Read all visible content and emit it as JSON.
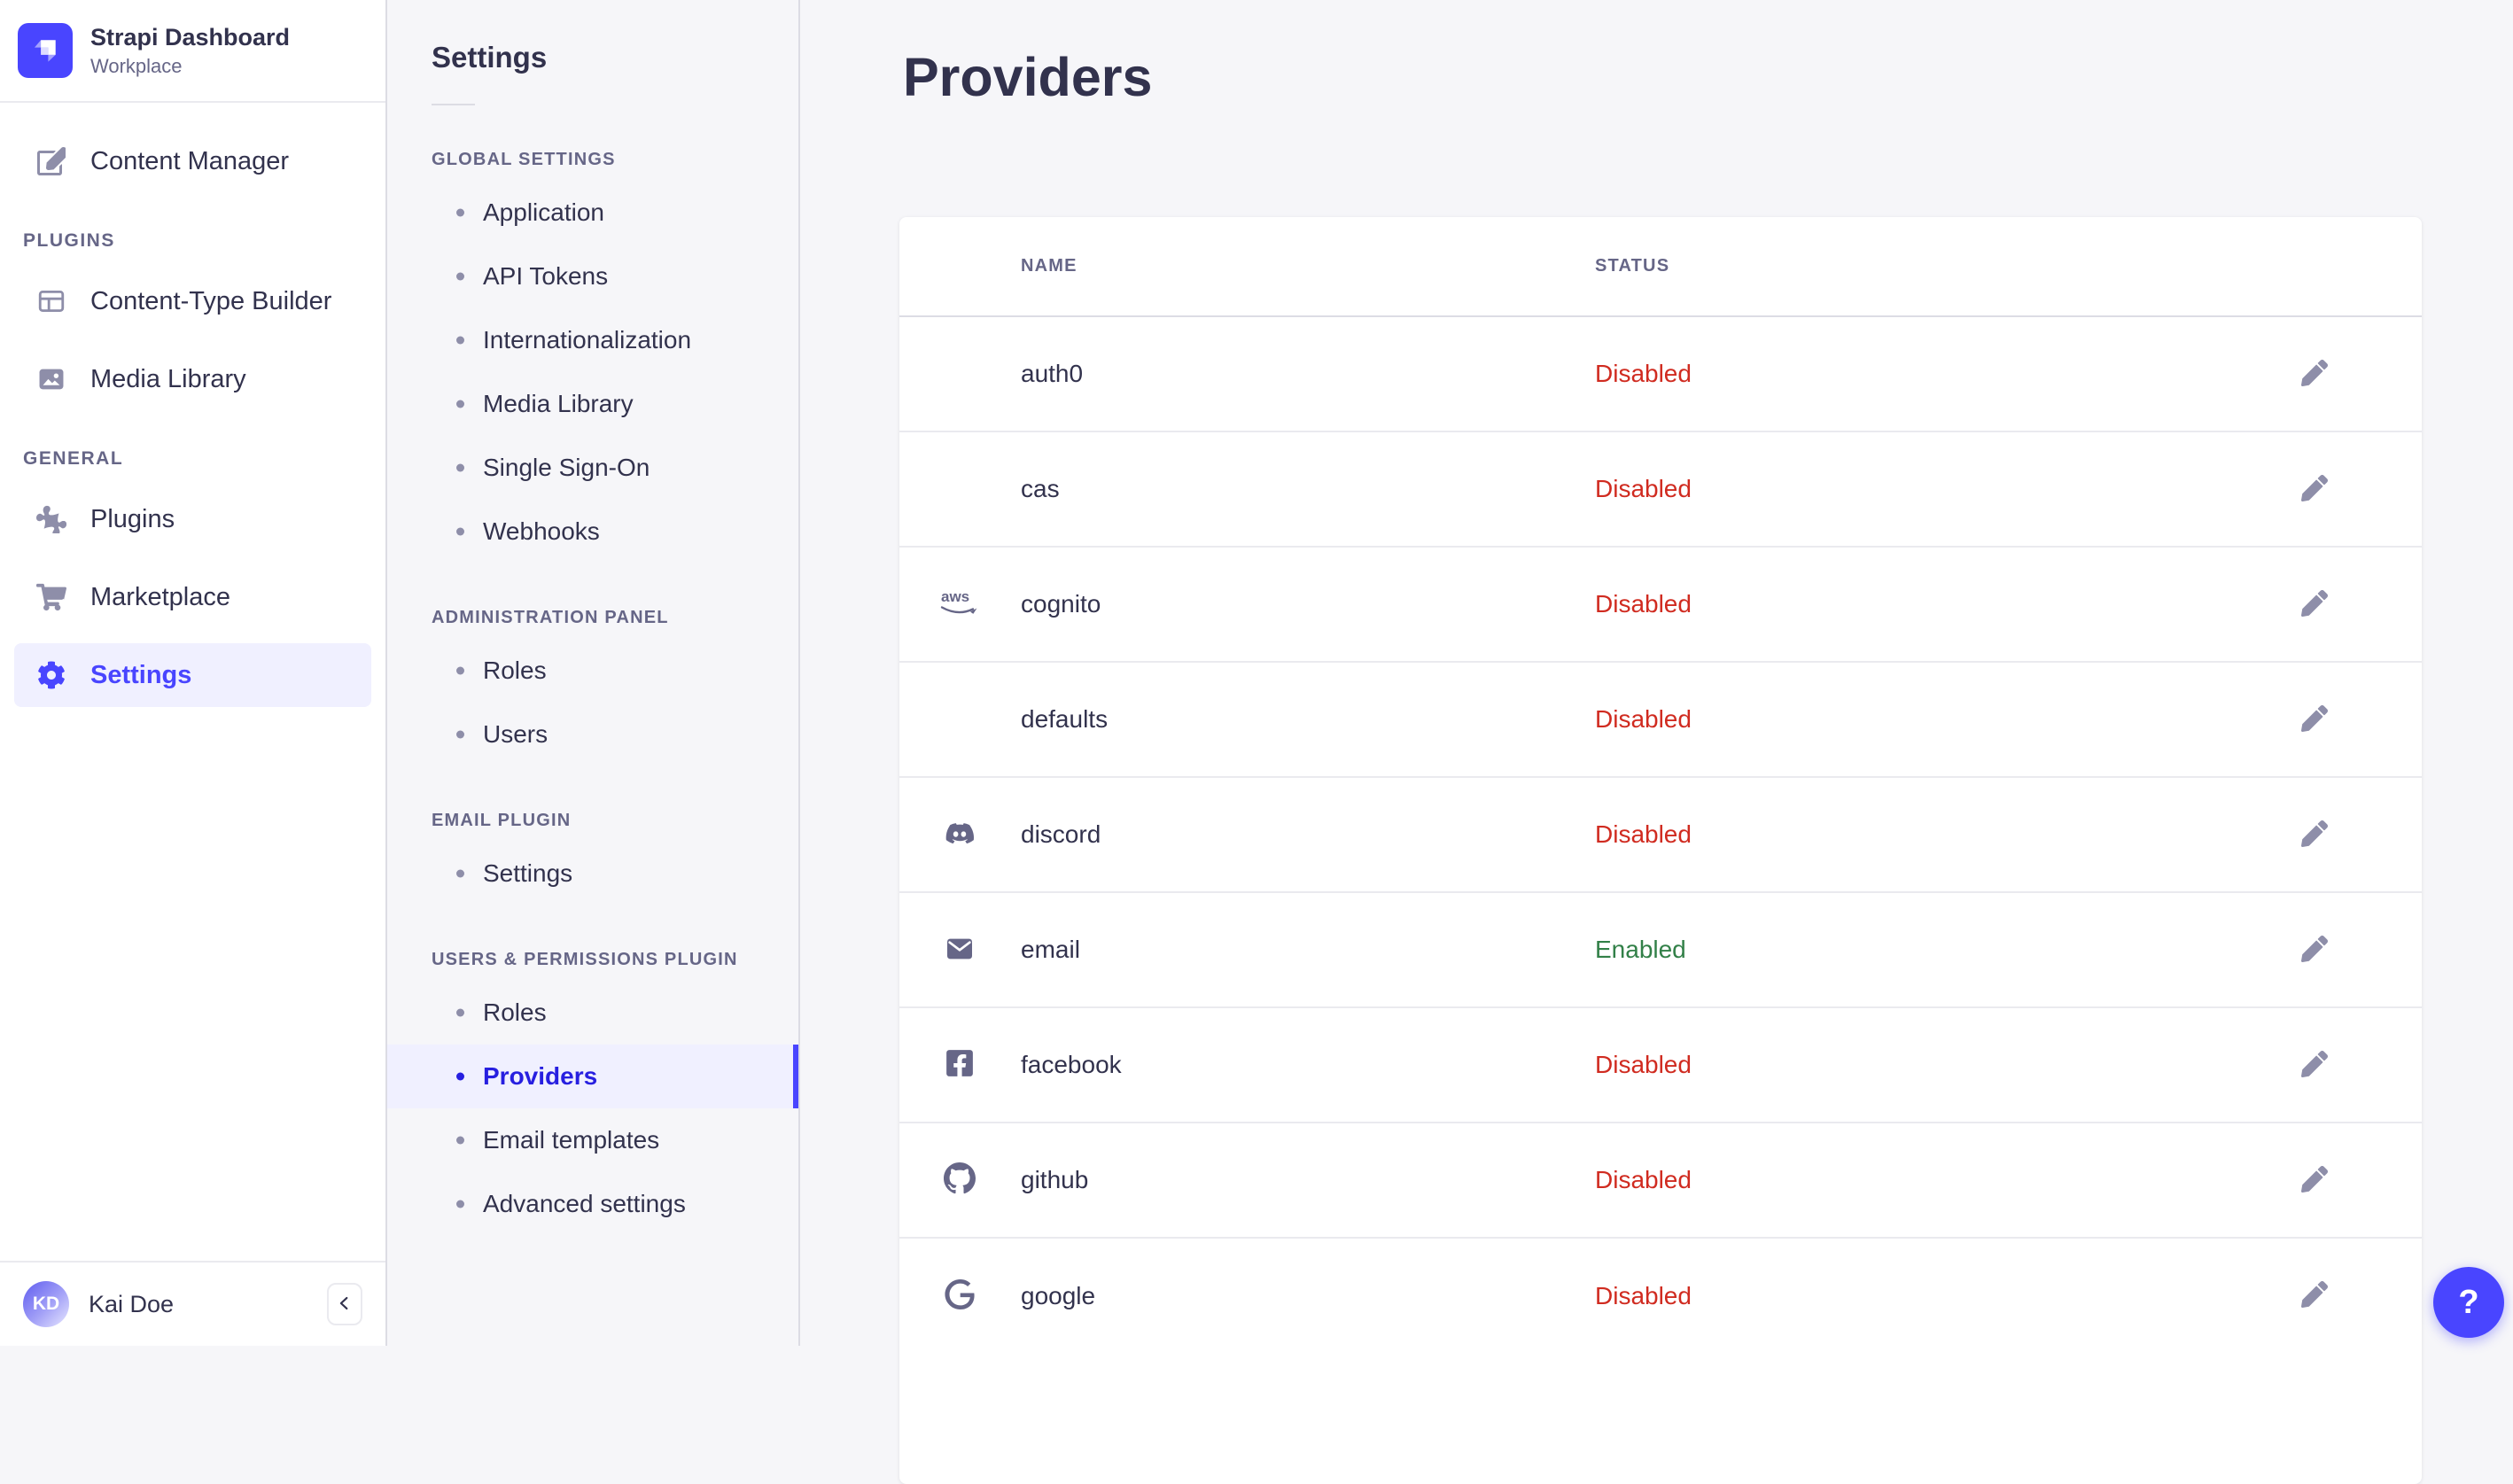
{
  "colors": {
    "primary": "#4945FF",
    "active_subnav_text": "#271FE0",
    "danger": "#D02B20",
    "success": "#328048",
    "text": "#32324D",
    "muted": "#666687",
    "icon_gray": "#8E8EA9",
    "border": "#DCDCE4",
    "row_border": "#EAEAEF",
    "background": "#F6F6F9",
    "highlight": "#F0F0FF"
  },
  "sidebar": {
    "title": "Strapi Dashboard",
    "subtitle": "Workplace",
    "logo_icon": "strapi-logo",
    "sections": [
      {
        "label": "",
        "items": [
          {
            "label": "Content Manager",
            "icon": "content-manager-icon",
            "active": false
          }
        ]
      },
      {
        "label": "PLUGINS",
        "items": [
          {
            "label": "Content-Type Builder",
            "icon": "content-type-builder-icon",
            "active": false
          },
          {
            "label": "Media Library",
            "icon": "media-library-icon",
            "active": false
          }
        ]
      },
      {
        "label": "GENERAL",
        "items": [
          {
            "label": "Plugins",
            "icon": "plugins-icon",
            "active": false
          },
          {
            "label": "Marketplace",
            "icon": "marketplace-icon",
            "active": false
          },
          {
            "label": "Settings",
            "icon": "gear-icon",
            "active": true
          }
        ]
      }
    ],
    "user": {
      "initials": "KD",
      "name": "Kai Doe"
    },
    "collapse_icon": "chevron-left-icon"
  },
  "settings_nav": {
    "title": "Settings",
    "sections": [
      {
        "label": "GLOBAL SETTINGS",
        "active_item": "",
        "items": [
          "Application",
          "API Tokens",
          "Internationalization",
          "Media Library",
          "Single Sign-On",
          "Webhooks"
        ]
      },
      {
        "label": "ADMINISTRATION PANEL",
        "active_item": "",
        "items": [
          "Roles",
          "Users"
        ]
      },
      {
        "label": "EMAIL PLUGIN",
        "active_item": "",
        "items": [
          "Settings"
        ]
      },
      {
        "label": "USERS & PERMISSIONS PLUGIN",
        "active_item": "Providers",
        "items": [
          "Roles",
          "Providers",
          "Email templates",
          "Advanced settings"
        ]
      }
    ]
  },
  "main": {
    "title": "Providers",
    "table": {
      "columns": [
        "NAME",
        "STATUS"
      ],
      "edit_icon": "pencil-icon",
      "rows": [
        {
          "name": "auth0",
          "icon": "",
          "status": "Disabled"
        },
        {
          "name": "cas",
          "icon": "",
          "status": "Disabled"
        },
        {
          "name": "cognito",
          "icon": "aws-icon",
          "status": "Disabled"
        },
        {
          "name": "defaults",
          "icon": "",
          "status": "Disabled"
        },
        {
          "name": "discord",
          "icon": "discord-icon",
          "status": "Disabled"
        },
        {
          "name": "email",
          "icon": "email-icon",
          "status": "Enabled"
        },
        {
          "name": "facebook",
          "icon": "facebook-icon",
          "status": "Disabled"
        },
        {
          "name": "github",
          "icon": "github-icon",
          "status": "Disabled"
        },
        {
          "name": "google",
          "icon": "google-icon",
          "status": "Disabled"
        }
      ]
    }
  },
  "help": {
    "label": "?"
  }
}
